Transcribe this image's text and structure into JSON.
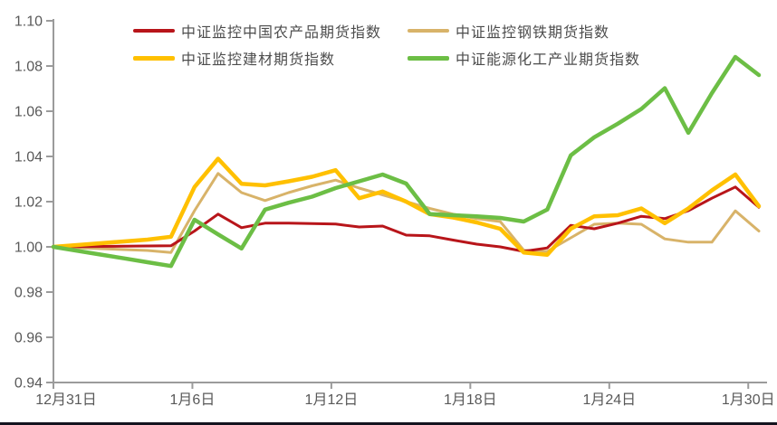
{
  "chart_data": {
    "type": "line",
    "title": "",
    "xlabel": "",
    "ylabel": "",
    "grid": false,
    "legend_position": "top",
    "ylim": [
      0.94,
      1.1
    ],
    "y_tick_labels": [
      "0.94",
      "0.96",
      "0.98",
      "1.00",
      "1.02",
      "1.04",
      "1.06",
      "1.08",
      "1.10"
    ],
    "y_tick_values": [
      0.94,
      0.96,
      0.98,
      1.0,
      1.02,
      1.04,
      1.06,
      1.08,
      1.1
    ],
    "x_tick_labels": [
      "12月31日",
      "1月6日",
      "1月12日",
      "1月18日",
      "1月24日",
      "1月30日"
    ],
    "x_tick_indices": [
      0,
      6,
      12,
      18,
      24,
      30
    ],
    "categories": [
      "12月31日",
      "1月1日",
      "1月2日",
      "1月3日",
      "1月4日",
      "1月5日",
      "1月6日",
      "1月7日",
      "1月8日",
      "1月9日",
      "1月10日",
      "1月11日",
      "1月12日",
      "1月13日",
      "1月14日",
      "1月15日",
      "1月16日",
      "1月17日",
      "1月18日",
      "1月19日",
      "1月20日",
      "1月21日",
      "1月22日",
      "1月23日",
      "1月24日",
      "1月25日",
      "1月26日",
      "1月27日",
      "1月28日",
      "1月29日",
      "1月30日"
    ],
    "series": [
      {
        "id": "agriculture",
        "name": "中证监控中国农产品期货指数",
        "color": "#b8151a",
        "stroke_width": 3,
        "values": [
          1.0,
          1.0001,
          1.0002,
          1.0003,
          1.0004,
          1.0005,
          1.007,
          1.0145,
          1.0085,
          1.0105,
          1.0105,
          1.0103,
          1.0101,
          1.0088,
          1.0092,
          1.0052,
          1.0049,
          1.003,
          1.0012,
          1.0,
          0.998,
          0.9995,
          1.0095,
          1.008,
          1.0105,
          1.0135,
          1.0125,
          1.016,
          1.0215,
          1.0265,
          1.0175
        ]
      },
      {
        "id": "steel",
        "name": "中证监控钢铁期货指数",
        "color": "#d8b369",
        "stroke_width": 3,
        "values": [
          1.0,
          0.9996,
          0.9992,
          0.9988,
          0.9984,
          0.9975,
          1.016,
          1.0325,
          1.024,
          1.0205,
          1.024,
          1.027,
          1.0295,
          1.026,
          1.023,
          1.02,
          1.017,
          1.0145,
          1.0125,
          1.0112,
          0.9985,
          0.998,
          1.004,
          1.01,
          1.0105,
          1.01,
          1.0035,
          1.0021,
          1.0021,
          1.0159,
          1.007
        ]
      },
      {
        "id": "building-materials",
        "name": "中证监控建材期货指数",
        "color": "#ffc000",
        "stroke_width": 4.5,
        "values": [
          1.0,
          1.0008,
          1.0016,
          1.0024,
          1.0032,
          1.0045,
          1.0265,
          1.039,
          1.0279,
          1.0272,
          1.029,
          1.031,
          1.0339,
          1.0215,
          1.0245,
          1.02,
          1.0145,
          1.013,
          1.0108,
          1.008,
          0.9975,
          0.9965,
          1.008,
          1.0135,
          1.014,
          1.017,
          1.0105,
          1.017,
          1.025,
          1.032,
          1.018
        ]
      },
      {
        "id": "energy-chemical",
        "name": "中证能源化工产业期货指数",
        "color": "#6cbe45",
        "stroke_width": 4.5,
        "values": [
          1.0,
          0.9983,
          0.9966,
          0.9949,
          0.9932,
          0.9915,
          1.012,
          1.0055,
          0.9993,
          1.0165,
          1.0195,
          1.0222,
          1.026,
          1.029,
          1.032,
          1.028,
          1.0145,
          1.014,
          1.0135,
          1.0128,
          1.0112,
          1.0165,
          1.0405,
          1.0485,
          1.0545,
          1.061,
          1.0702,
          1.0505,
          1.068,
          1.084,
          1.076
        ]
      }
    ],
    "axis_color": "#9b9b9b",
    "tick_label_color": "#595959"
  }
}
